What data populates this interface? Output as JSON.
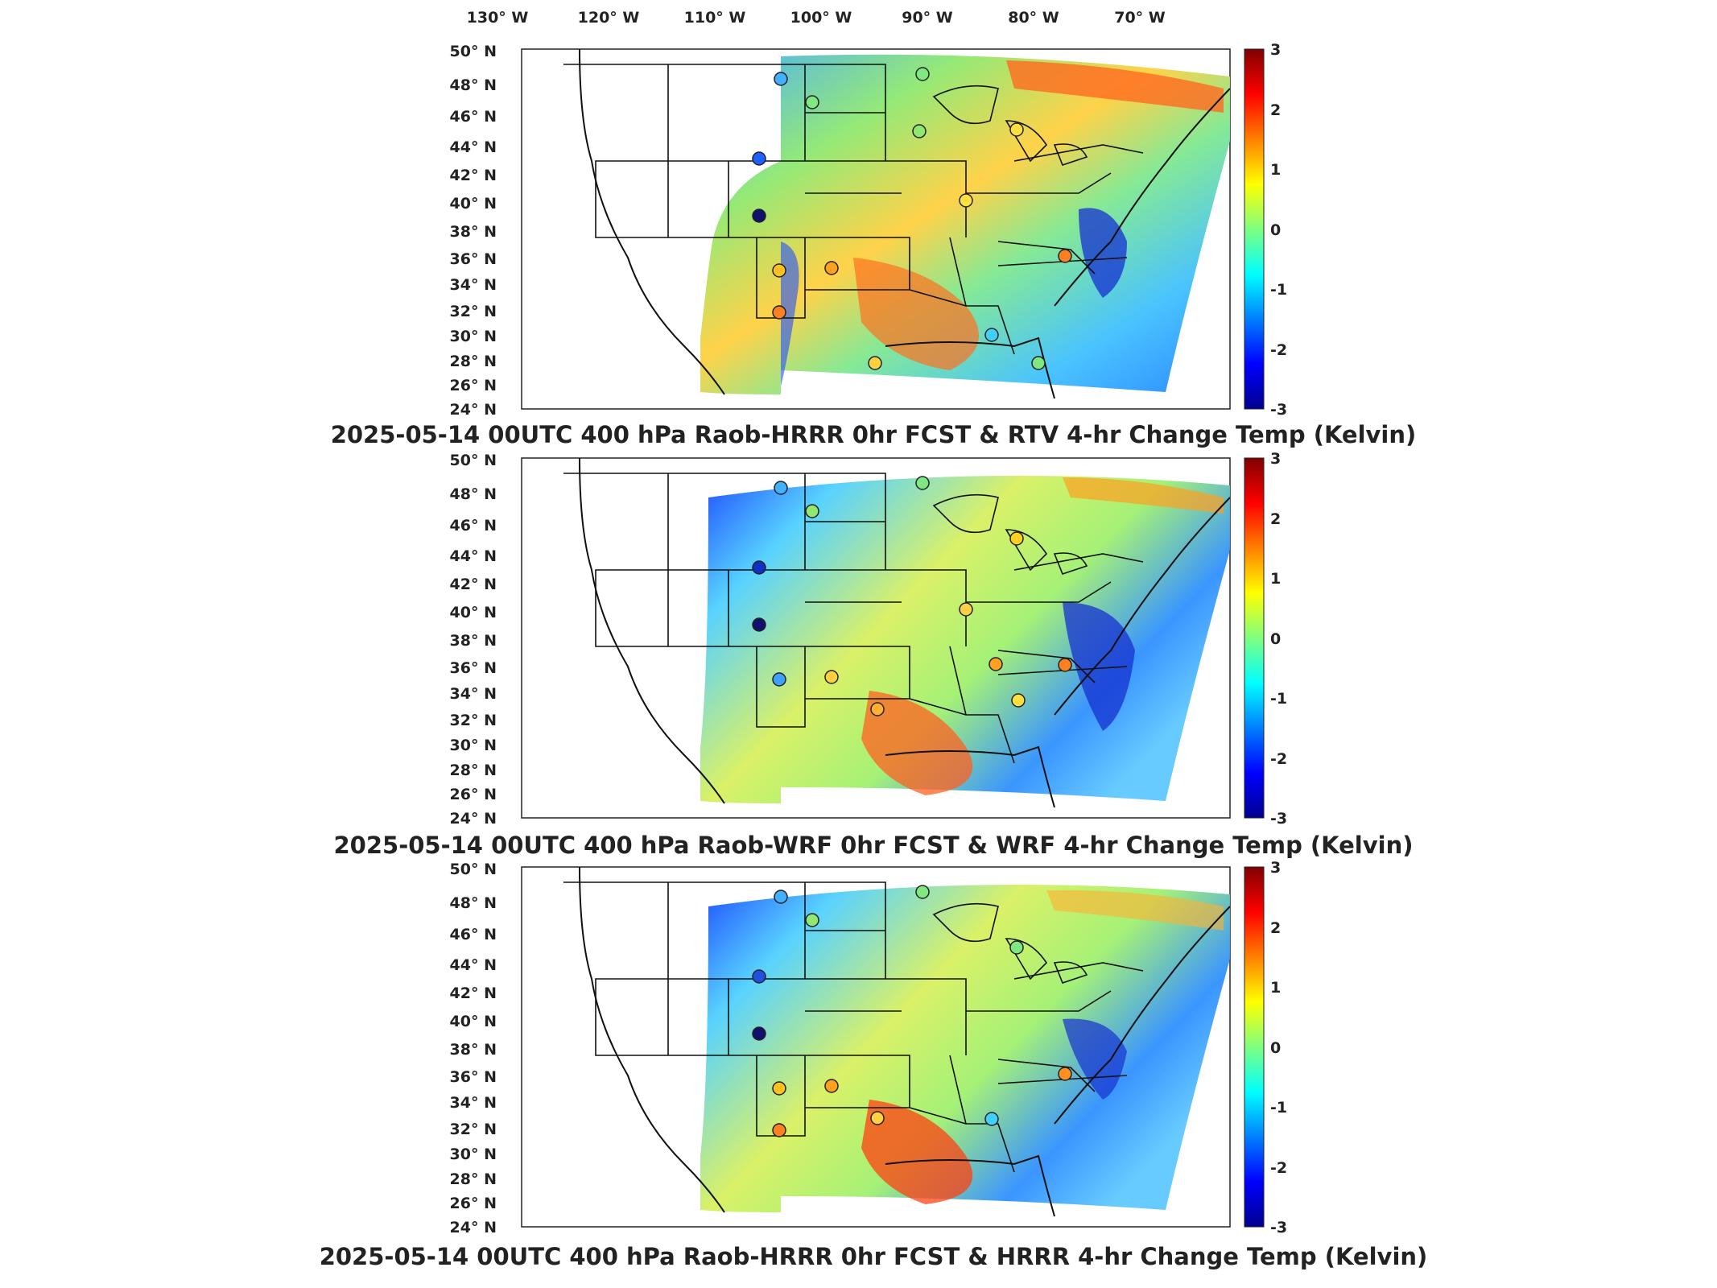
{
  "longitude_labels": [
    "130° W",
    "120° W",
    "110° W",
    "100° W",
    "90° W",
    "80° W",
    "70° W"
  ],
  "latitude_labels": [
    "50° N",
    "48° N",
    "46° N",
    "44° N",
    "42° N",
    "40° N",
    "38° N",
    "36° N",
    "34° N",
    "32° N",
    "30° N",
    "28° N",
    "26° N",
    "24° N"
  ],
  "colorbar": {
    "ticks": [
      "3",
      "2",
      "1",
      "0",
      "-1",
      "-2",
      "-3"
    ],
    "range": [
      -3,
      3
    ],
    "colormap": "jet",
    "colors": [
      "#00008f",
      "#0000ff",
      "#00ffff",
      "#ffff00",
      "#ff0000",
      "#800000"
    ]
  },
  "panels": [
    {
      "title": "2025-05-14 00UTC 400 hPa Raob-HRRR 0hr FCST & RTV 4-hr Change Temp (Kelvin)"
    },
    {
      "title": "2025-05-14 00UTC 400 hPa Raob-WRF 0hr FCST & WRF 4-hr Change Temp (Kelvin)"
    },
    {
      "title": "2025-05-14 00UTC 400 hPa Raob-HRRR 0hr FCST & HRRR 4-hr Change Temp (Kelvin)"
    }
  ]
}
